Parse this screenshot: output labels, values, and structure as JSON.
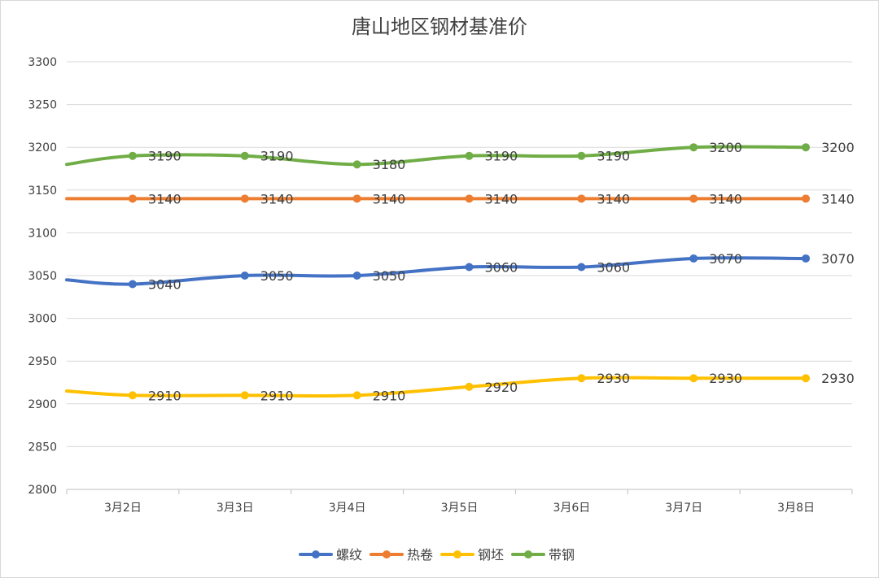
{
  "chart_data": {
    "type": "line",
    "title": "唐山地区钢材基准价",
    "xlabel": "",
    "ylabel": "",
    "ylim": [
      2800,
      3300
    ],
    "ytick_step": 50,
    "grid": true,
    "legend_position": "bottom",
    "categories": [
      "3月2日",
      "3月3日",
      "3月4日",
      "3月5日",
      "3月6日",
      "3月7日",
      "3月8日"
    ],
    "series": [
      {
        "name": "螺纹",
        "color": "#4472c4",
        "start_value": 3045,
        "values": [
          3040,
          3050,
          3050,
          3060,
          3060,
          3070,
          3070
        ]
      },
      {
        "name": "热卷",
        "color": "#ed7d31",
        "start_value": 3140,
        "values": [
          3140,
          3140,
          3140,
          3140,
          3140,
          3140,
          3140
        ]
      },
      {
        "name": "钢坯",
        "color": "#ffc000",
        "start_value": 2915,
        "values": [
          2910,
          2910,
          2910,
          2920,
          2930,
          2930,
          2930
        ]
      },
      {
        "name": "带钢",
        "color": "#70ad47",
        "start_value": 3180,
        "values": [
          3190,
          3190,
          3180,
          3190,
          3190,
          3200,
          3200
        ]
      }
    ]
  }
}
